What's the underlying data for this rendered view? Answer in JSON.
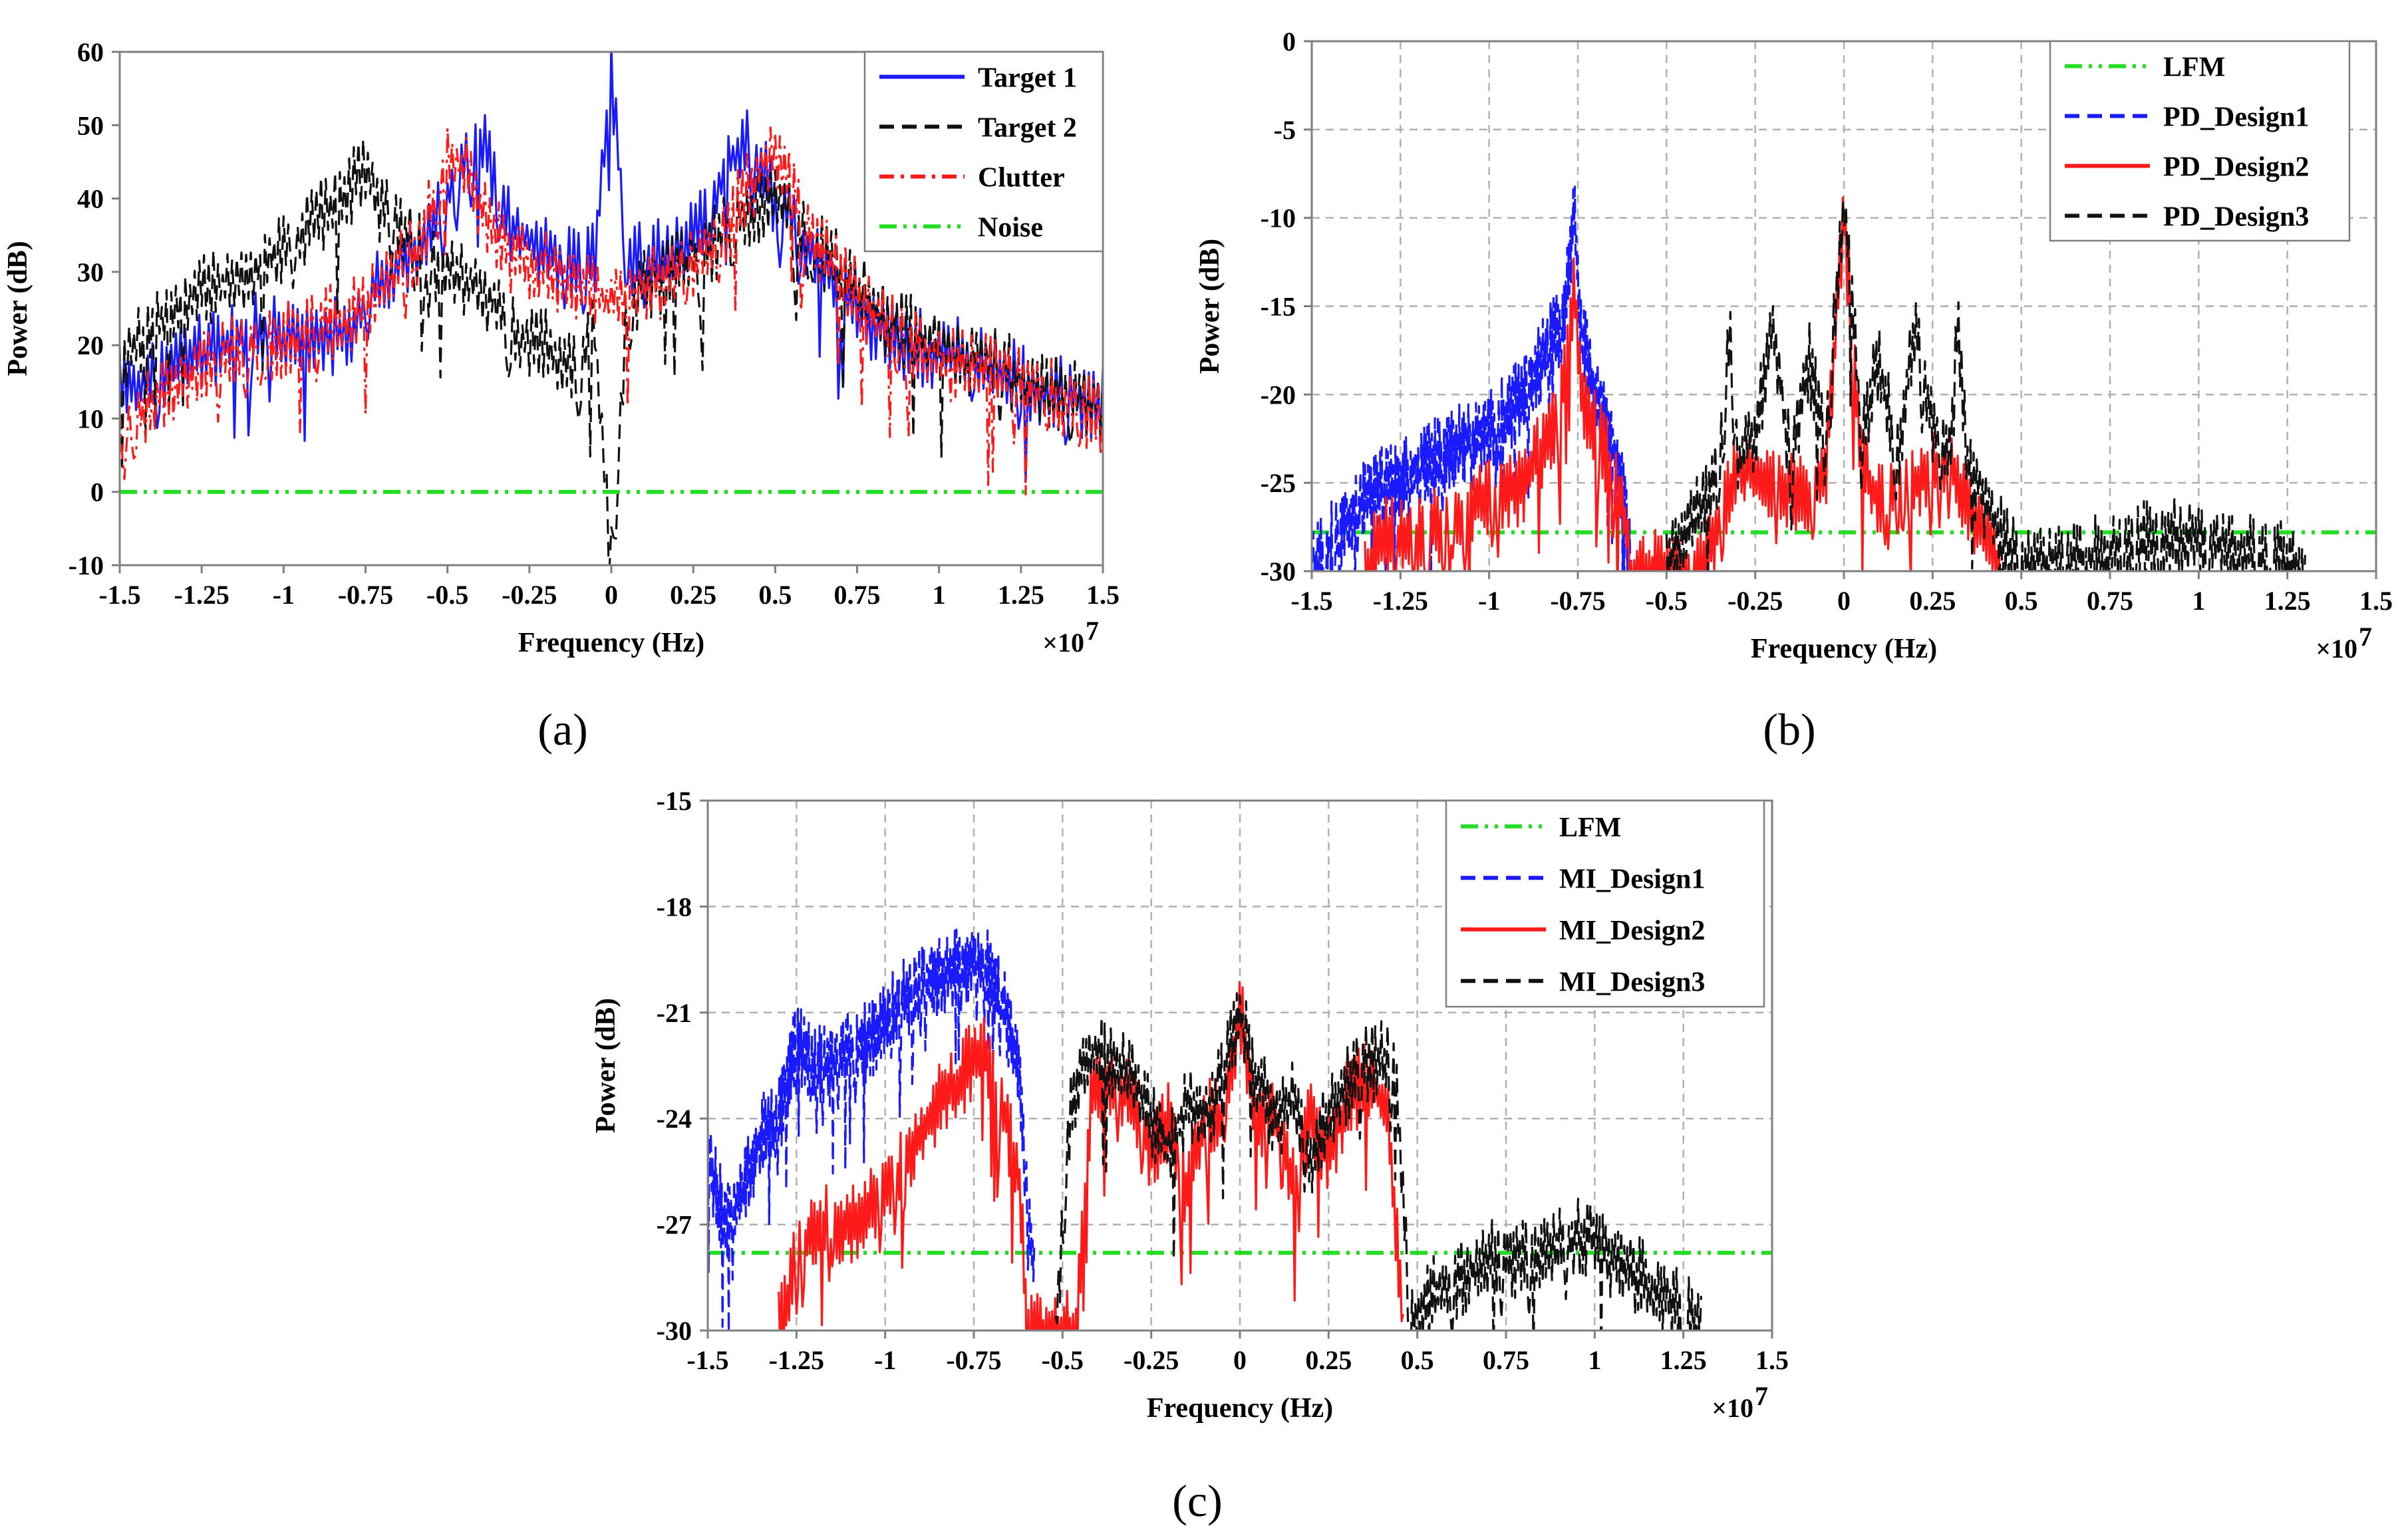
{
  "chart_data": [
    {
      "id": "a",
      "type": "line",
      "panel_label": "(a)",
      "xlabel": "Frequency (Hz)",
      "ylabel": "Power (dB)",
      "x_multiplier": "×10",
      "x_exponent": "7",
      "xlim": [
        -1.5,
        1.5
      ],
      "ylim": [
        -10,
        60
      ],
      "xticks": [
        -1.5,
        -1.25,
        -1,
        -0.75,
        -0.5,
        -0.25,
        0,
        0.25,
        0.5,
        0.75,
        1,
        1.25,
        1.5
      ],
      "xtick_labels": [
        "-1.5",
        "-1.25",
        "-1",
        "-0.75",
        "-0.5",
        "-0.25",
        "0",
        "0.25",
        "0.5",
        "0.75",
        "1",
        "1.25",
        "1.5"
      ],
      "yticks": [
        -10,
        0,
        10,
        20,
        30,
        40,
        50,
        60
      ],
      "ytick_labels": [
        "-10",
        "0",
        "10",
        "20",
        "30",
        "40",
        "50",
        "60"
      ],
      "grid": false,
      "legend_position": "top-right",
      "series": [
        {
          "name": "Target 1",
          "color": "#1a1aff",
          "dash": "solid",
          "x": [
            -1.5,
            -1.4,
            -1.3,
            -1.2,
            -1.1,
            -1.0,
            -0.9,
            -0.8,
            -0.75,
            -0.7,
            -0.6,
            -0.5,
            -0.45,
            -0.4,
            -0.35,
            -0.3,
            -0.2,
            -0.1,
            -0.05,
            0,
            0.05,
            0.1,
            0.2,
            0.3,
            0.35,
            0.4,
            0.45,
            0.5,
            0.6,
            0.7,
            0.8,
            0.9,
            1.0,
            1.1,
            1.2,
            1.3,
            1.4,
            1.5
          ],
          "y": [
            13,
            16,
            18,
            20,
            22,
            21,
            20,
            22,
            26,
            29,
            33,
            40,
            45,
            48,
            42,
            36,
            33,
            30,
            32,
            58,
            30,
            32,
            33,
            38,
            44,
            48,
            45,
            40,
            33,
            28,
            23,
            20,
            19,
            18,
            16,
            14,
            13,
            12
          ]
        },
        {
          "name": "Target 2",
          "color": "#111111",
          "dash": "dashed",
          "x": [
            -1.5,
            -1.4,
            -1.3,
            -1.2,
            -1.1,
            -1.0,
            -0.9,
            -0.8,
            -0.75,
            -0.7,
            -0.6,
            -0.5,
            -0.4,
            -0.3,
            -0.2,
            -0.1,
            -0.05,
            0,
            0.05,
            0.1,
            0.2,
            0.3,
            0.4,
            0.5,
            0.6,
            0.7,
            0.8,
            0.9,
            1.0,
            1.1,
            1.2,
            1.3,
            1.4,
            1.5
          ],
          "y": [
            18,
            22,
            26,
            28,
            30,
            33,
            37,
            41,
            44,
            38,
            34,
            30,
            28,
            22,
            20,
            16,
            22,
            -10,
            26,
            28,
            30,
            33,
            38,
            40,
            35,
            30,
            25,
            22,
            20,
            18,
            17,
            15,
            13,
            12
          ]
        },
        {
          "name": "Clutter",
          "color": "#ff1a1a",
          "dash": "dashdot",
          "x": [
            -1.5,
            -1.4,
            -1.3,
            -1.2,
            -1.1,
            -1.0,
            -0.9,
            -0.8,
            -0.7,
            -0.6,
            -0.55,
            -0.5,
            -0.45,
            -0.4,
            -0.3,
            -0.2,
            -0.1,
            0,
            0.1,
            0.2,
            0.3,
            0.35,
            0.4,
            0.45,
            0.5,
            0.55,
            0.6,
            0.7,
            0.8,
            0.9,
            1.0,
            1.1,
            1.2,
            1.3,
            1.4,
            1.5
          ],
          "y": [
            8,
            12,
            16,
            18,
            20,
            21,
            22,
            24,
            28,
            33,
            38,
            46,
            44,
            38,
            32,
            30,
            28,
            26,
            28,
            30,
            32,
            36,
            40,
            44,
            47,
            42,
            36,
            30,
            24,
            20,
            18,
            17,
            16,
            14,
            12,
            10
          ]
        },
        {
          "name": "Noise",
          "color": "#22dd22",
          "dash": "dashdotdot",
          "x": [
            -1.5,
            1.5
          ],
          "y": [
            0,
            0
          ]
        }
      ]
    },
    {
      "id": "b",
      "type": "line",
      "panel_label": "(b)",
      "xlabel": "Frequency (Hz)",
      "ylabel": "Power (dB)",
      "x_multiplier": "×10",
      "x_exponent": "7",
      "xlim": [
        -1.5,
        1.5
      ],
      "ylim": [
        -30,
        0
      ],
      "xticks": [
        -1.5,
        -1.25,
        -1,
        -0.75,
        -0.5,
        -0.25,
        0,
        0.25,
        0.5,
        0.75,
        1,
        1.25,
        1.5
      ],
      "xtick_labels": [
        "-1.5",
        "-1.25",
        "-1",
        "-0.75",
        "-0.5",
        "-0.25",
        "0",
        "0.25",
        "0.5",
        "0.75",
        "1",
        "1.25",
        "1.5"
      ],
      "yticks": [
        -30,
        -25,
        -20,
        -15,
        -10,
        -5,
        0
      ],
      "ytick_labels": [
        "-30",
        "-25",
        "-20",
        "-15",
        "-10",
        "-5",
        "0"
      ],
      "grid": true,
      "legend_position": "top-right",
      "series": [
        {
          "name": "LFM",
          "color": "#22dd22",
          "dash": "dashdotdot",
          "x": [
            -1.5,
            1.5
          ],
          "y": [
            -27.8,
            -27.8
          ]
        },
        {
          "name": "PD_Design1",
          "color": "#1a1aff",
          "dash": "dashed",
          "x": [
            -1.5,
            -1.4,
            -1.3,
            -1.2,
            -1.1,
            -1.0,
            -0.9,
            -0.85,
            -0.8,
            -0.78,
            -0.76,
            -0.74,
            -0.72,
            -0.7,
            -0.66,
            -0.62,
            -0.6
          ],
          "y": [
            -30,
            -27,
            -25,
            -24,
            -23,
            -22,
            -20,
            -18,
            -16,
            -14,
            -9.5,
            -17,
            -18,
            -20,
            -22,
            -26,
            -30
          ]
        },
        {
          "name": "PD_Design2",
          "color": "#ff1a1a",
          "dash": "solid",
          "x": [
            -1.35,
            -1.3,
            -1.2,
            -1.1,
            -1.0,
            -0.9,
            -0.85,
            -0.8,
            -0.78,
            -0.76,
            -0.74,
            -0.72,
            -0.7,
            -0.66,
            -0.62,
            -0.6,
            -0.4,
            -0.35,
            -0.3,
            -0.2,
            -0.1,
            -0.05,
            0,
            0.05,
            0.1,
            0.2,
            0.3,
            0.35,
            0.4,
            0.44
          ],
          "y": [
            -30,
            -28,
            -28,
            -27,
            -26,
            -25,
            -23,
            -21,
            -18,
            -14,
            -20,
            -21,
            -22,
            -24,
            -27,
            -30,
            -30,
            -27,
            -24,
            -25,
            -26,
            -24,
            -10,
            -24,
            -26,
            -25,
            -24,
            -26,
            -28,
            -30
          ]
        },
        {
          "name": "PD_Design3",
          "color": "#111111",
          "dash": "dashed",
          "x": [
            -0.5,
            -0.45,
            -0.4,
            -0.35,
            -0.32,
            -0.3,
            -0.25,
            -0.2,
            -0.15,
            -0.1,
            -0.05,
            0,
            0.05,
            0.1,
            0.15,
            0.2,
            0.25,
            0.3,
            0.32,
            0.35,
            0.4,
            0.45,
            0.5,
            0.75,
            0.9,
            1.0,
            1.1,
            1.2,
            1.3
          ],
          "y": [
            -30,
            -28,
            -26,
            -24,
            -16,
            -24,
            -22,
            -16,
            -24,
            -18,
            -22,
            -9,
            -22,
            -18,
            -24,
            -16,
            -22,
            -24,
            -16,
            -24,
            -26,
            -28,
            -30,
            -29,
            -28,
            -28,
            -29,
            -29,
            -30
          ]
        }
      ]
    },
    {
      "id": "c",
      "type": "line",
      "panel_label": "(c)",
      "xlabel": "Frequency (Hz)",
      "ylabel": "Power (dB)",
      "x_multiplier": "×10",
      "x_exponent": "7",
      "xlim": [
        -1.5,
        1.5
      ],
      "ylim": [
        -30,
        -15
      ],
      "xticks": [
        -1.5,
        -1.25,
        -1,
        -0.75,
        -0.5,
        -0.25,
        0,
        0.25,
        0.5,
        0.75,
        1,
        1.25,
        1.5
      ],
      "xtick_labels": [
        "-1.5",
        "-1.25",
        "-1",
        "-0.75",
        "-0.5",
        "-0.25",
        "0",
        "0.25",
        "0.5",
        "0.75",
        "1",
        "1.25",
        "1.5"
      ],
      "yticks": [
        -30,
        -27,
        -24,
        -21,
        -18,
        -15
      ],
      "ytick_labels": [
        "-30",
        "-27",
        "-24",
        "-21",
        "-18",
        "-15"
      ],
      "grid": true,
      "legend_position": "top-right",
      "series": [
        {
          "name": "LFM",
          "color": "#22dd22",
          "dash": "dashdotdot",
          "x": [
            -1.5,
            1.5
          ],
          "y": [
            -27.8,
            -27.8
          ]
        },
        {
          "name": "MI_Design1",
          "color": "#1a1aff",
          "dash": "dashed",
          "x": [
            -1.5,
            -1.45,
            -1.4,
            -1.35,
            -1.3,
            -1.25,
            -1.2,
            -1.15,
            -1.1,
            -1.05,
            -1.0,
            -0.95,
            -0.9,
            -0.85,
            -0.8,
            -0.75,
            -0.72,
            -0.7,
            -0.66,
            -0.62,
            -0.6,
            -0.58
          ],
          "y": [
            -25,
            -27,
            -26,
            -24.5,
            -24,
            -21.8,
            -22.5,
            -22.5,
            -22,
            -21.8,
            -21.3,
            -20.6,
            -20.3,
            -20,
            -19.7,
            -19.4,
            -19.5,
            -20,
            -21,
            -23,
            -26,
            -28.5
          ]
        },
        {
          "name": "MI_Design2",
          "color": "#ff1a1a",
          "dash": "solid",
          "x": [
            -1.3,
            -1.25,
            -1.2,
            -1.1,
            -1.0,
            -0.95,
            -0.9,
            -0.85,
            -0.8,
            -0.75,
            -0.72,
            -0.7,
            -0.66,
            -0.62,
            -0.6,
            -0.46,
            -0.42,
            -0.38,
            -0.3,
            -0.25,
            -0.2,
            -0.15,
            -0.1,
            -0.05,
            0,
            0.05,
            0.1,
            0.15,
            0.2,
            0.25,
            0.3,
            0.35,
            0.38,
            0.42,
            0.46
          ],
          "y": [
            -30,
            -28,
            -27,
            -27,
            -26,
            -25.5,
            -24.5,
            -23.5,
            -23,
            -22.3,
            -22,
            -23,
            -24,
            -26,
            -30,
            -30,
            -23.5,
            -23,
            -23.5,
            -25,
            -24,
            -26,
            -24,
            -24,
            -21,
            -24,
            -24,
            -26,
            -24,
            -25,
            -23.5,
            -23,
            -23.2,
            -24,
            -30
          ]
        },
        {
          "name": "MI_Design3",
          "color": "#111111",
          "dash": "dashed",
          "x": [
            -0.52,
            -0.48,
            -0.44,
            -0.4,
            -0.35,
            -0.3,
            -0.25,
            -0.2,
            -0.15,
            -0.1,
            -0.05,
            0,
            0.05,
            0.1,
            0.15,
            0.2,
            0.25,
            0.3,
            0.35,
            0.4,
            0.44,
            0.48,
            0.55,
            0.7,
            0.8,
            0.9,
            1.0,
            1.05,
            1.2,
            1.3
          ],
          "y": [
            -30,
            -24,
            -22.5,
            -22.2,
            -22.5,
            -23,
            -24,
            -25,
            -23.5,
            -24,
            -23,
            -21,
            -23,
            -24,
            -23.5,
            -25,
            -24,
            -23,
            -22.5,
            -22.3,
            -22.5,
            -30,
            -29,
            -28,
            -28,
            -27.5,
            -27.3,
            -28,
            -29,
            -30
          ]
        }
      ]
    }
  ]
}
